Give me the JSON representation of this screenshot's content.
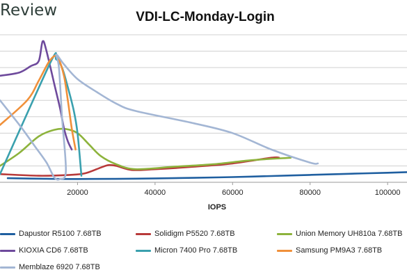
{
  "logo": "Review",
  "chart_data": {
    "type": "line",
    "title": "VDI-LC-Monday-Login",
    "xlabel": "IOPS",
    "ylabel": "",
    "xlim": [
      0,
      105000
    ],
    "ylim": [
      0,
      9
    ],
    "xticks": [
      20000,
      40000,
      60000,
      80000,
      100000
    ],
    "grid": true,
    "legend_position": "bottom",
    "series": [
      {
        "name": "Dapustor R5100 7.68TB",
        "color": "#1f5fa0",
        "points": [
          [
            2000,
            0.25
          ],
          [
            10000,
            0.22
          ],
          [
            20000,
            0.2
          ],
          [
            35000,
            0.22
          ],
          [
            50000,
            0.27
          ],
          [
            60000,
            0.32
          ],
          [
            70000,
            0.38
          ],
          [
            80000,
            0.45
          ],
          [
            90000,
            0.52
          ],
          [
            100000,
            0.58
          ],
          [
            105000,
            0.62
          ]
        ]
      },
      {
        "name": "Solidigm P5520 7.68TB",
        "color": "#b83a3a",
        "points": [
          [
            0,
            0.5
          ],
          [
            10000,
            0.4
          ],
          [
            18000,
            0.45
          ],
          [
            22000,
            0.55
          ],
          [
            26000,
            0.9
          ],
          [
            28000,
            1.05
          ],
          [
            30000,
            1.0
          ],
          [
            34000,
            0.75
          ],
          [
            40000,
            0.8
          ],
          [
            50000,
            0.95
          ],
          [
            60000,
            1.15
          ],
          [
            70000,
            1.5
          ],
          [
            72000,
            1.5
          ]
        ]
      },
      {
        "name": "Union Memory UH810a 7.68TB",
        "color": "#8db33c",
        "points": [
          [
            0,
            1.0
          ],
          [
            5000,
            1.8
          ],
          [
            10000,
            2.8
          ],
          [
            14000,
            3.2
          ],
          [
            17000,
            3.25
          ],
          [
            20000,
            3.0
          ],
          [
            23000,
            2.3
          ],
          [
            26000,
            1.6
          ],
          [
            30000,
            1.1
          ],
          [
            35000,
            0.8
          ],
          [
            45000,
            0.95
          ],
          [
            55000,
            1.1
          ],
          [
            65000,
            1.35
          ],
          [
            75000,
            1.5
          ]
        ]
      },
      {
        "name": "KIOXIA CD6 7.68TB",
        "color": "#6e4a9c",
        "points": [
          [
            0,
            6.5
          ],
          [
            5000,
            6.7
          ],
          [
            8000,
            7.1
          ],
          [
            10000,
            7.4
          ],
          [
            11000,
            8.6
          ],
          [
            12000,
            8.0
          ],
          [
            14000,
            6.0
          ],
          [
            15500,
            4.5
          ],
          [
            16500,
            3.3
          ],
          [
            17500,
            2.5
          ],
          [
            18500,
            2.0
          ]
        ]
      },
      {
        "name": "Micron 7400 Pro 7.68TB",
        "color": "#3aa0ae",
        "points": [
          [
            0,
            0.5
          ],
          [
            13000,
            7.3
          ],
          [
            14500,
            7.5
          ],
          [
            16000,
            7.0
          ],
          [
            17500,
            5.8
          ],
          [
            19000,
            4.4
          ],
          [
            20000,
            3.0
          ],
          [
            21000,
            0.4
          ]
        ]
      },
      {
        "name": "Samsung PM9A3 7.68TB",
        "color": "#f0903a",
        "points": [
          [
            0,
            3.5
          ],
          [
            7000,
            5.0
          ],
          [
            10000,
            6.2
          ],
          [
            12500,
            7.3
          ],
          [
            14000,
            7.7
          ],
          [
            15000,
            7.6
          ],
          [
            16500,
            6.5
          ],
          [
            17500,
            5.0
          ],
          [
            18500,
            3.3
          ],
          [
            19500,
            2.0
          ]
        ]
      },
      {
        "name": "Memblaze 6920 7.68TB",
        "color": "#a3b6d4",
        "points": [
          [
            0,
            5.0
          ],
          [
            5000,
            3.5
          ],
          [
            9000,
            2.2
          ],
          [
            12000,
            1.2
          ],
          [
            14000,
            0.3
          ],
          [
            15500,
            0.2
          ],
          [
            17000,
            0.7
          ],
          [
            16000,
            4.0
          ],
          [
            15200,
            7.0
          ],
          [
            14500,
            7.8
          ],
          [
            16500,
            7.2
          ],
          [
            20000,
            6.3
          ],
          [
            25000,
            5.5
          ],
          [
            30000,
            4.8
          ],
          [
            35000,
            4.35
          ],
          [
            50000,
            3.6
          ],
          [
            60000,
            3.0
          ],
          [
            70000,
            2.0
          ],
          [
            80000,
            1.2
          ],
          [
            82000,
            1.15
          ]
        ]
      }
    ]
  }
}
